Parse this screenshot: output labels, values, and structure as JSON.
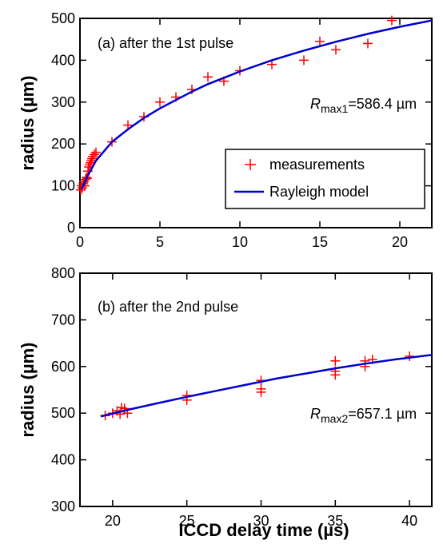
{
  "colors": {
    "measurements": "#ff0000",
    "model": "#0000cc",
    "axis": "#000000"
  },
  "chart_data": [
    {
      "type": "scatter",
      "panel_label": "(a) after the 1st pulse",
      "xlim": [
        0,
        22
      ],
      "ylim": [
        0,
        500
      ],
      "xticks": [
        0,
        5,
        10,
        15,
        20
      ],
      "yticks": [
        0,
        100,
        200,
        300,
        400,
        500
      ],
      "xlabel": "",
      "ylabel": "radius (µm)",
      "annotation": {
        "symbol": "R",
        "subscript": "max1",
        "value": "=586.4 µm"
      },
      "legend": {
        "position": "lower-right",
        "entries": [
          "measurements",
          "Rayleigh model"
        ]
      },
      "series": [
        {
          "name": "measurements",
          "marker": "plus",
          "points": [
            [
              0.05,
              90
            ],
            [
              0.1,
              100
            ],
            [
              0.15,
              95
            ],
            [
              0.2,
              105
            ],
            [
              0.25,
              110
            ],
            [
              0.3,
              100
            ],
            [
              0.35,
              115
            ],
            [
              0.4,
              120
            ],
            [
              0.45,
              118
            ],
            [
              0.5,
              135
            ],
            [
              0.55,
              145
            ],
            [
              0.6,
              150
            ],
            [
              0.65,
              155
            ],
            [
              0.7,
              160
            ],
            [
              0.75,
              165
            ],
            [
              0.8,
              170
            ],
            [
              0.9,
              175
            ],
            [
              1.0,
              180
            ],
            [
              2,
              205
            ],
            [
              3,
              245
            ],
            [
              4,
              265
            ],
            [
              5,
              300
            ],
            [
              6,
              312
            ],
            [
              7,
              330
            ],
            [
              8,
              360
            ],
            [
              9,
              350
            ],
            [
              10,
              375
            ],
            [
              12,
              390
            ],
            [
              14,
              400
            ],
            [
              15,
              445
            ],
            [
              16,
              425
            ],
            [
              18,
              440
            ],
            [
              19.5,
              495
            ]
          ]
        },
        {
          "name": "Rayleigh model",
          "marker": "line",
          "points": [
            [
              0.1,
              92
            ],
            [
              0.5,
              125
            ],
            [
              1,
              160
            ],
            [
              2,
              205
            ],
            [
              3,
              235
            ],
            [
              4,
              262
            ],
            [
              5,
              285
            ],
            [
              6,
              305
            ],
            [
              7,
              325
            ],
            [
              8,
              343
            ],
            [
              9,
              358
            ],
            [
              10,
              373
            ],
            [
              12,
              400
            ],
            [
              14,
              423
            ],
            [
              16,
              444
            ],
            [
              18,
              463
            ],
            [
              20,
              480
            ],
            [
              22,
              495
            ]
          ]
        }
      ]
    },
    {
      "type": "scatter",
      "panel_label": "(b) after the 2nd pulse",
      "xlim": [
        17.8,
        41.5
      ],
      "ylim": [
        300,
        800
      ],
      "xticks": [
        20,
        25,
        30,
        35,
        40
      ],
      "yticks": [
        300,
        400,
        500,
        600,
        700,
        800
      ],
      "xlabel": "ICCD delay time (µs)",
      "ylabel": "radius (µm)",
      "annotation": {
        "symbol": "R",
        "subscript": "max2",
        "value": "=657.1 µm"
      },
      "series": [
        {
          "name": "measurements",
          "marker": "plus",
          "points": [
            [
              19.5,
              495
            ],
            [
              20,
              500
            ],
            [
              20.3,
              505
            ],
            [
              20.5,
              498
            ],
            [
              20.8,
              510
            ],
            [
              21,
              500
            ],
            [
              20.6,
              512
            ],
            [
              25,
              528
            ],
            [
              25,
              538
            ],
            [
              30,
              545
            ],
            [
              30,
              552
            ],
            [
              30,
              570
            ],
            [
              35,
              582
            ],
            [
              35,
              590
            ],
            [
              35,
              612
            ],
            [
              37,
              600
            ],
            [
              37,
              612
            ],
            [
              37.5,
              615
            ],
            [
              40,
              622
            ]
          ]
        },
        {
          "name": "Rayleigh model",
          "marker": "line",
          "points": [
            [
              19.2,
              493
            ],
            [
              21,
              507
            ],
            [
              23,
              521
            ],
            [
              25,
              535
            ],
            [
              27,
              548
            ],
            [
              29,
              561
            ],
            [
              31,
              574
            ],
            [
              33,
              585
            ],
            [
              35,
              596
            ],
            [
              37,
              606
            ],
            [
              39,
              615
            ],
            [
              41.5,
              625
            ]
          ]
        }
      ]
    }
  ]
}
